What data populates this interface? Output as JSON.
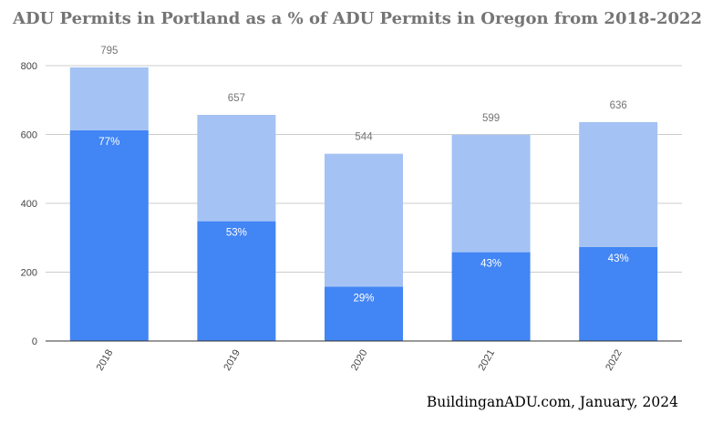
{
  "title": "ADU Permits in Portland as a % of ADU Permits in Oregon from 2018-2022",
  "footer": "BuildinganADU.com, January, 2024",
  "colors": {
    "portland": "#4285f4",
    "remainder": "#a4c2f4",
    "grid": "#cccccc",
    "axis": "#333333",
    "tick_text": "#444444",
    "total_label": "#757575",
    "pct_label": "#ffffff"
  },
  "chart_data": {
    "type": "bar",
    "stacked": true,
    "categories": [
      "2018",
      "2019",
      "2020",
      "2021",
      "2022"
    ],
    "series": [
      {
        "values": [
          612,
          348,
          158,
          258,
          273
        ]
      },
      {
        "values": [
          183,
          309,
          386,
          341,
          363
        ]
      }
    ],
    "totals": [
      795,
      657,
      544,
      599,
      636
    ],
    "totals_labels": [
      "795",
      "657",
      "544",
      "599",
      "636"
    ],
    "percent_labels": [
      "77%",
      "53%",
      "29%",
      "43%",
      "43%"
    ],
    "y_ticks": [
      "0",
      "200",
      "400",
      "600",
      "800"
    ],
    "ylim": [
      0,
      850
    ],
    "grid": true,
    "legend": "none"
  }
}
